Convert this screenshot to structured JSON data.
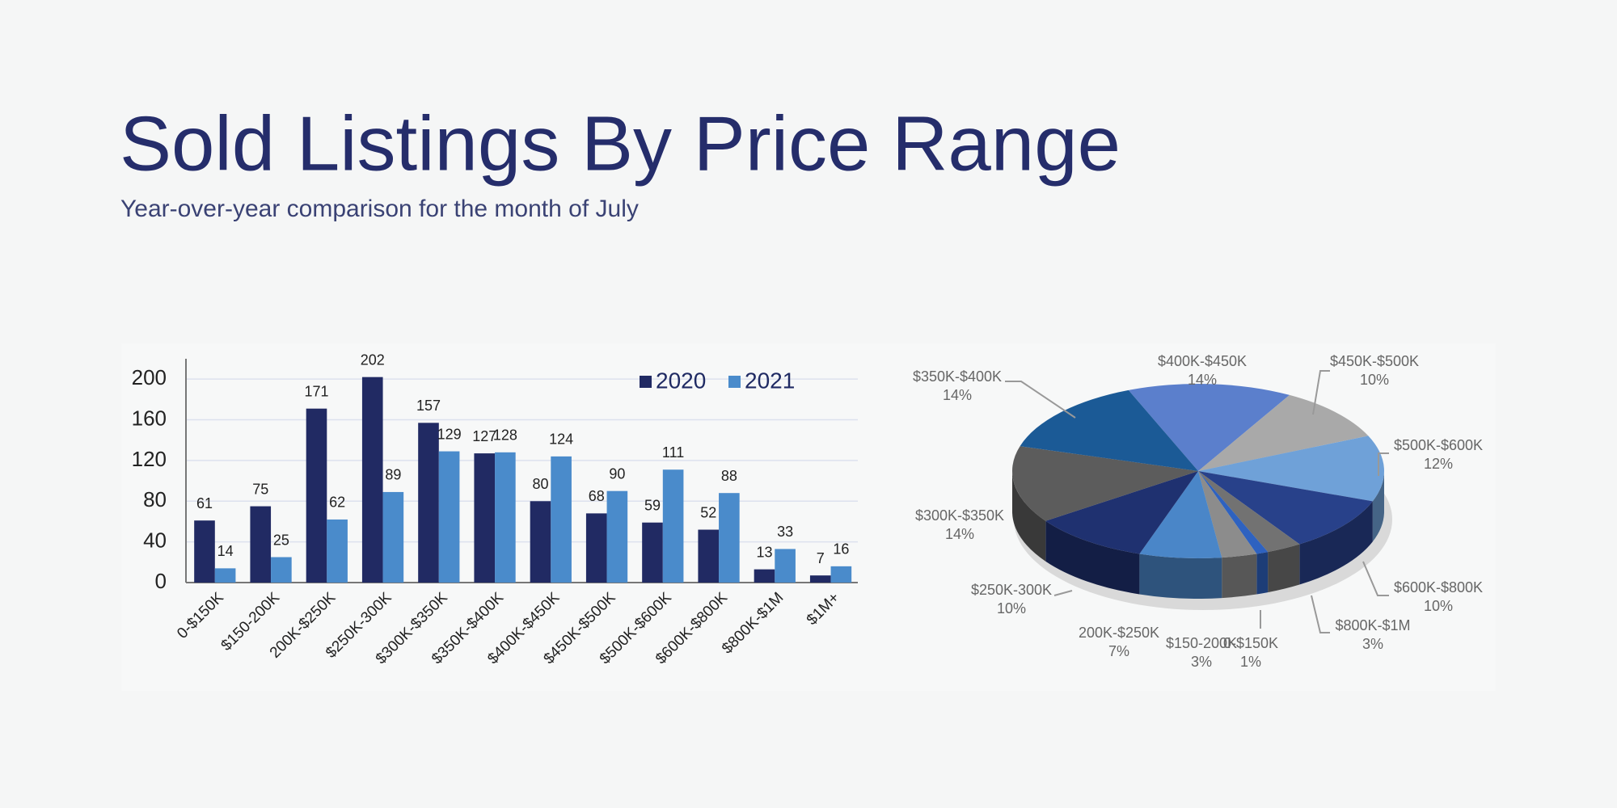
{
  "header": {
    "title": "Sold Listings By Price Range",
    "subtitle": "Year-over-year comparison for the month of July"
  },
  "chart_data": [
    {
      "type": "bar",
      "categories": [
        "0-$150K",
        "$150-200K",
        "200K-$250K",
        "$250K-300K",
        "$300K-$350K",
        "$350K-$400K",
        "$400K-$450K",
        "$450K-$500K",
        "$500K-$600K",
        "$600K-$800K",
        "$800K-$1M",
        "$1M+"
      ],
      "series": [
        {
          "name": "2020",
          "color": "#212a63",
          "values": [
            61,
            75,
            171,
            202,
            157,
            127,
            80,
            68,
            59,
            52,
            13,
            7
          ]
        },
        {
          "name": "2021",
          "color": "#4a8bcb",
          "values": [
            14,
            25,
            62,
            89,
            129,
            128,
            124,
            90,
            111,
            88,
            33,
            16
          ]
        }
      ],
      "ylim": [
        0,
        220
      ],
      "yticks": [
        0,
        40,
        80,
        120,
        160,
        200
      ],
      "grid": true,
      "legend": "top-right"
    },
    {
      "type": "pie",
      "categories": [
        "$400K-$450K",
        "$450K-$500K",
        "$500K-$600K",
        "$600K-$800K",
        "$800K-$1M",
        "0-$150K",
        "$150-200K",
        "200K-$250K",
        "$250K-300K",
        "$300K-$350K",
        "$350K-$400K"
      ],
      "values": [
        14,
        10,
        12,
        10,
        3,
        1,
        3,
        7,
        10,
        14,
        14
      ],
      "value_labels": [
        "14%",
        "10%",
        "12%",
        "10%",
        "3%",
        "1%",
        "3%",
        "7%",
        "10%",
        "14%",
        "14%"
      ],
      "colors": [
        "#5b7fcc",
        "#a9a9a9",
        "#6fa1d8",
        "#28418a",
        "#727272",
        "#2e62c0",
        "#8c8c8c",
        "#4a86c8",
        "#1f3170",
        "#5c5c5c",
        "#1b5a96"
      ]
    }
  ]
}
